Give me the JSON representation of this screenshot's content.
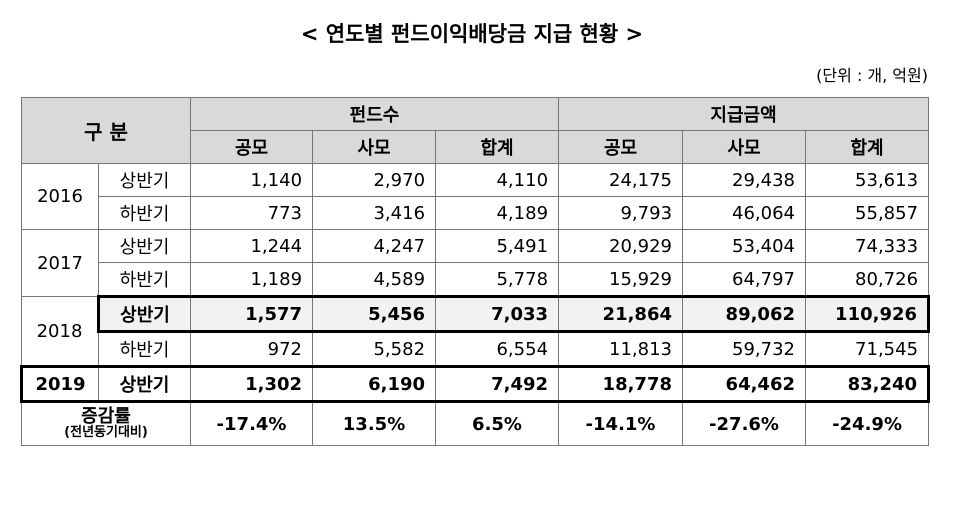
{
  "header": {
    "title": "< 연도별 펀드이익배당금 지급 현황 >",
    "unit": "(단위 : 개, 억원)"
  },
  "table": {
    "corner": "구 분",
    "groups": [
      "펀드수",
      "지급금액"
    ],
    "columns": [
      "공모",
      "사모",
      "합계",
      "공모",
      "사모",
      "합계"
    ],
    "years": [
      {
        "year": "2016",
        "halves": [
          {
            "half": "상반기",
            "cells": [
              "1,140",
              "2,970",
              "4,110",
              "24,175",
              "29,438",
              "53,613"
            ]
          },
          {
            "half": "하반기",
            "cells": [
              "773",
              "3,416",
              "4,189",
              "9,793",
              "46,064",
              "55,857"
            ]
          }
        ]
      },
      {
        "year": "2017",
        "halves": [
          {
            "half": "상반기",
            "cells": [
              "1,244",
              "4,247",
              "5,491",
              "20,929",
              "53,404",
              "74,333"
            ]
          },
          {
            "half": "하반기",
            "cells": [
              "1,189",
              "4,589",
              "5,778",
              "15,929",
              "64,797",
              "80,726"
            ]
          }
        ]
      },
      {
        "year": "2018",
        "halves": [
          {
            "half": "상반기",
            "cells": [
              "1,577",
              "5,456",
              "7,033",
              "21,864",
              "89,062",
              "110,926"
            ]
          },
          {
            "half": "하반기",
            "cells": [
              "972",
              "5,582",
              "6,554",
              "11,813",
              "59,732",
              "71,545"
            ]
          }
        ]
      },
      {
        "year": "2019",
        "halves": [
          {
            "half": "상반기",
            "cells": [
              "1,302",
              "6,190",
              "7,492",
              "18,778",
              "64,462",
              "83,240"
            ]
          }
        ]
      }
    ],
    "change": {
      "label": "증감률",
      "sublabel": "(전년동기대비)",
      "cells": [
        "-17.4%",
        "13.5%",
        "6.5%",
        "-14.1%",
        "-27.6%",
        "-24.9%"
      ]
    }
  }
}
